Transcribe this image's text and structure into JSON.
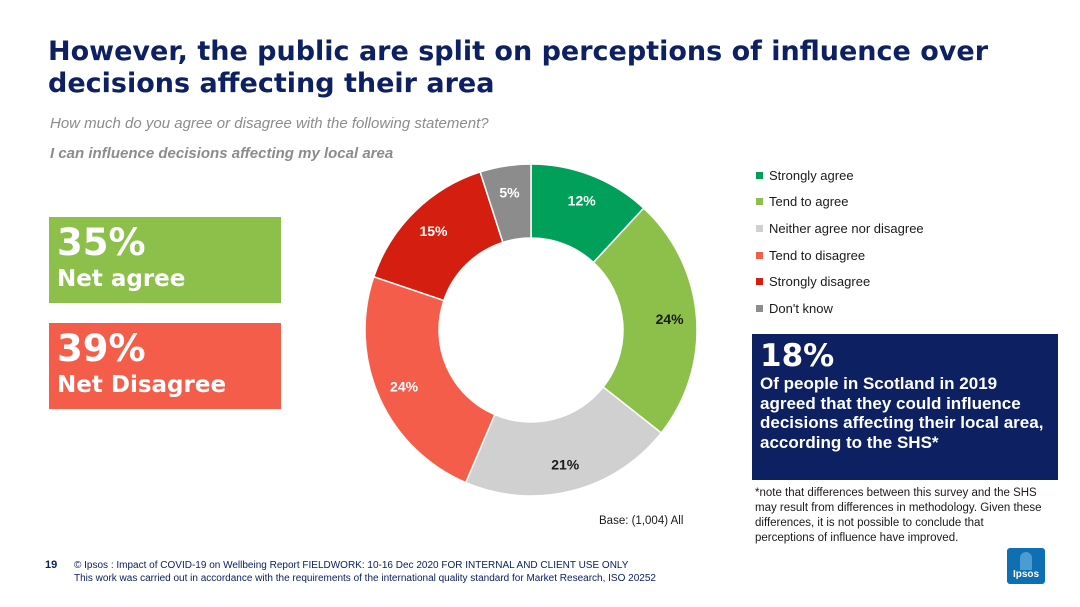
{
  "title": "However, the public are split on perceptions of influence over decisions affecting their area",
  "question": "How much do you agree or disagree with the following statement?",
  "statement": "I can influence decisions affecting my local area",
  "net_agree": {
    "value": "35%",
    "label": "Net agree",
    "color": "#8cc04a"
  },
  "net_disagree": {
    "value": "39%",
    "label": "Net Disagree",
    "color": "#f55d4b"
  },
  "chart_data": {
    "type": "pie",
    "donut": true,
    "categories": [
      "Strongly agree",
      "Tend to agree",
      "Neither agree nor disagree",
      "Tend to disagree",
      "Strongly disagree",
      "Don't know"
    ],
    "values": [
      12,
      24,
      21,
      24,
      15,
      5
    ],
    "labels": [
      "12%",
      "24%",
      "21%",
      "24%",
      "15%",
      "5%"
    ],
    "colors": [
      "#00a05a",
      "#8cc04a",
      "#d0d0d0",
      "#f55d4b",
      "#d41e10",
      "#8c8c8c"
    ],
    "legend_position": "right"
  },
  "shs_box": {
    "value": "18%",
    "text": "Of people in Scotland in 2019 agreed that they could influence decisions affecting their local area, according to the SHS*"
  },
  "note": "*note that differences between this survey and the SHS may result from differences in methodology. Given these differences, it is not possible to conclude that perceptions of influence have improved.",
  "base": "Base: (1,004) All",
  "page_number": "19",
  "footer": {
    "line1": "© Ipsos : Impact of COVID-19 on Wellbeing Report FIELDWORK: 10-16 Dec 2020 FOR INTERNAL AND CLIENT USE ONLY",
    "line2": "This work was carried out in accordance with the requirements of the international quality standard for Market Research, ISO 20252"
  },
  "logo_text": "Ipsos"
}
